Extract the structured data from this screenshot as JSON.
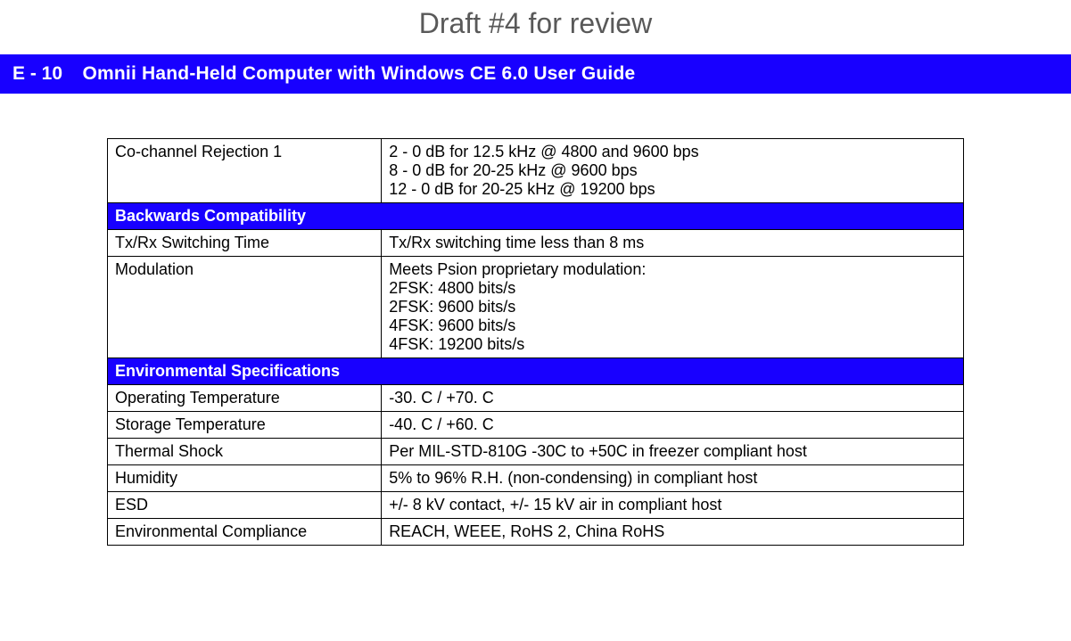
{
  "draft_banner": "Draft #4 for review",
  "header": {
    "pagenum": "E - 10",
    "title": "Omnii Hand-Held Computer with Windows CE 6.0 User Guide"
  },
  "colors": {
    "accent": "#1800ff",
    "accent_text": "#ffffff",
    "border": "#000000",
    "banner_text": "#595959",
    "background": "#ffffff"
  },
  "table": {
    "rows": [
      {
        "type": "data",
        "param": "Co-channel Rejection 1",
        "value": "2 - 0 dB for 12.5 kHz @ 4800 and 9600 bps\n8 - 0 dB for 20-25 kHz @ 9600 bps\n12 - 0 dB for 20-25 kHz @ 19200 bps"
      },
      {
        "type": "section",
        "label": "Backwards Compatibility"
      },
      {
        "type": "data",
        "param": "Tx/Rx Switching Time",
        "value": "Tx/Rx switching time less than 8 ms"
      },
      {
        "type": "data",
        "param": "Modulation",
        "value": "Meets Psion proprietary modulation:\n2FSK: 4800 bits/s\n2FSK: 9600 bits/s\n4FSK: 9600 bits/s\n4FSK: 19200 bits/s"
      },
      {
        "type": "section",
        "label": "Environmental Specifications"
      },
      {
        "type": "data",
        "param": "Operating Temperature",
        "value": "-30. C / +70. C"
      },
      {
        "type": "data",
        "param": "Storage Temperature",
        "value": "-40. C / +60. C"
      },
      {
        "type": "data",
        "param": "Thermal Shock",
        "value": "Per MIL-STD-810G -30C to +50C in freezer compliant host"
      },
      {
        "type": "data",
        "param": "Humidity",
        "value": "5% to 96% R.H. (non-condensing) in compliant host"
      },
      {
        "type": "data",
        "param": "ESD",
        "value": "+/- 8 kV contact, +/- 15 kV air in compliant host"
      },
      {
        "type": "data",
        "param": "Environmental Compliance",
        "value": "REACH, WEEE, RoHS 2, China RoHS"
      }
    ]
  }
}
